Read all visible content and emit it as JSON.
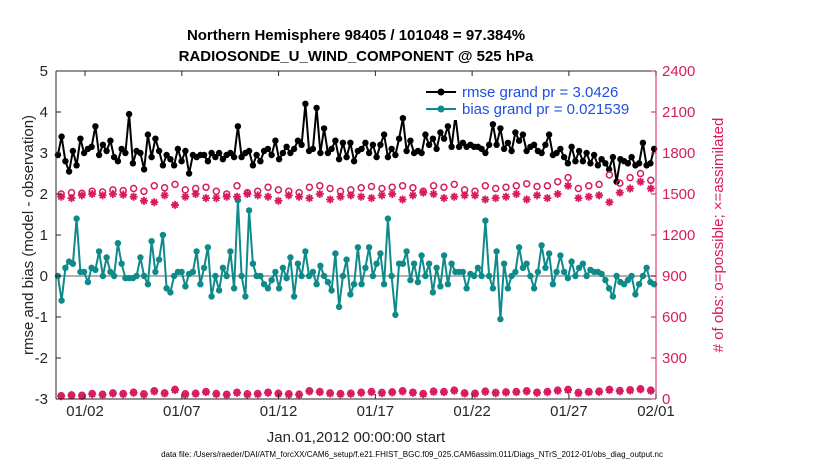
{
  "chart_data": {
    "type": "line",
    "title_line1": "Northern Hemisphere 98405 / 101048 = 97.384%",
    "title_line2": "RADIOSONDE_U_WIND_COMPONENT @ 525 hPa",
    "xlabel": "Jan.01,2012 00:00:00 start",
    "ylabel_left": "rmse and bias (model - observation)",
    "ylabel_right": "# of obs: o=possible; ×=assimilated",
    "ylim_left": [
      -3,
      5
    ],
    "ylim_right": [
      0,
      2400
    ],
    "xlim_day": [
      0.5,
      31.5
    ],
    "x_tick_labels": [
      "01/02",
      "01/07",
      "01/12",
      "01/17",
      "01/22",
      "01/27",
      "02/01"
    ],
    "x_tick_days": [
      2,
      7,
      12,
      17,
      22,
      27,
      32
    ],
    "y_ticks_left": [
      -3,
      -2,
      -1,
      0,
      1,
      2,
      3,
      4,
      5
    ],
    "y_ticks_right": [
      0,
      300,
      600,
      900,
      1200,
      1500,
      1800,
      2100,
      2400
    ],
    "footnote": "data file: /Users/raeder/DAI/ATM_forcXX/CAM6_setup/f.e21.FHIST_BGC.f09_025.CAM6assim.011/Diags_NTrS_2012-01/obs_diag_output.nc",
    "legend_placement": "top-right",
    "colors": {
      "rmse": "#000000",
      "bias": "#0f8a8a",
      "obs": "#d81b60",
      "zero_line": "#b0b0b0",
      "legend_text": "#1f4fe0"
    },
    "series": [
      {
        "name": "rmse grand pr = 3.0426",
        "axis": "left",
        "marker": "dot",
        "values": [
          2.95,
          3.4,
          2.8,
          2.55,
          3.05,
          2.7,
          3.35,
          3.0,
          3.1,
          3.15,
          3.65,
          2.95,
          3.2,
          3.05,
          3.3,
          2.9,
          2.8,
          3.1,
          3.0,
          3.95,
          2.75,
          3.05,
          3.0,
          2.6,
          3.45,
          2.9,
          3.35,
          3.05,
          2.7,
          2.95,
          2.85,
          2.7,
          3.1,
          2.8,
          3.05,
          2.5,
          2.95,
          2.9,
          2.95,
          2.95,
          2.8,
          3.0,
          2.9,
          3.0,
          2.85,
          2.95,
          3.0,
          2.9,
          3.65,
          2.9,
          3.0,
          3.05,
          2.7,
          2.95,
          2.8,
          3.05,
          3.1,
          2.95,
          3.3,
          2.85,
          3.0,
          3.15,
          3.0,
          3.1,
          3.3,
          3.2,
          4.2,
          3.05,
          3.1,
          4.1,
          3.0,
          3.6,
          3.0,
          3.1,
          3.3,
          2.85,
          3.25,
          2.9,
          3.25,
          2.8,
          3.05,
          3.1,
          3.25,
          3.0,
          3.2,
          2.9,
          3.2,
          3.45,
          2.9,
          3.1,
          2.95,
          3.35,
          3.85,
          3.05,
          3.3,
          3.0,
          3.05,
          3.0,
          3.45,
          3.2,
          3.35,
          3.1,
          3.5,
          3.35,
          3.65,
          3.15,
          3.9,
          3.15,
          3.25,
          3.15,
          3.2,
          3.15,
          3.15,
          3.1,
          3.0,
          3.2,
          3.7,
          3.2,
          3.6,
          3.1,
          3.25,
          3.05,
          3.5,
          3.3,
          3.45,
          3.05,
          3.15,
          3.2,
          3.05,
          3.0,
          3.2,
          3.45,
          2.95,
          3.0,
          3.1,
          2.9,
          2.75,
          3.15,
          2.8,
          3.05,
          2.8,
          3.0,
          2.75,
          2.95,
          2.7,
          2.85,
          2.75,
          2.6,
          2.9,
          2.3,
          2.85,
          2.8,
          2.75,
          2.9,
          2.7,
          2.75,
          3.25,
          2.7,
          2.75,
          3.1
        ]
      },
      {
        "name": "bias grand pr = 0.021539",
        "axis": "left",
        "marker": "dot",
        "values": [
          0.0,
          -0.6,
          0.2,
          0.35,
          0.3,
          1.4,
          0.1,
          0.1,
          -0.15,
          0.2,
          0.15,
          0.6,
          0.0,
          0.45,
          0.1,
          0.0,
          0.8,
          0.3,
          -0.05,
          -0.05,
          -0.05,
          0.0,
          0.45,
          0.0,
          -0.2,
          0.85,
          0.1,
          0.4,
          1.0,
          -0.3,
          -0.4,
          0.0,
          0.1,
          0.1,
          -0.25,
          0.05,
          0.1,
          0.6,
          -0.2,
          0.2,
          0.7,
          -0.5,
          0.0,
          -0.35,
          0.2,
          0.0,
          0.6,
          -0.3,
          1.85,
          0.0,
          -0.5,
          1.6,
          0.3,
          0.0,
          0.0,
          -0.2,
          -0.3,
          -0.1,
          0.1,
          -0.3,
          0.2,
          -0.05,
          0.45,
          -0.5,
          0.3,
          0.0,
          0.6,
          0.0,
          0.1,
          -0.2,
          0.25,
          0.0,
          -0.15,
          -0.35,
          0.55,
          -0.75,
          0.0,
          0.4,
          -0.45,
          -0.2,
          0.7,
          -0.2,
          0.2,
          0.7,
          0.0,
          0.3,
          0.55,
          -0.2,
          1.4,
          0.0,
          -0.95,
          0.3,
          0.3,
          0.6,
          -0.1,
          0.3,
          -0.15,
          0.5,
          0.0,
          0.3,
          -0.4,
          0.2,
          -0.25,
          0.5,
          -0.2,
          0.3,
          0.1,
          0.1,
          0.1,
          -0.3,
          0.05,
          0.0,
          0.2,
          0.0,
          1.35,
          0.0,
          -0.3,
          0.6,
          -1.05,
          0.3,
          -0.3,
          0.0,
          0.1,
          0.7,
          0.2,
          0.3,
          0.0,
          -0.3,
          0.1,
          0.75,
          0.2,
          0.55,
          -0.2,
          0.1,
          0.5,
          0.1,
          -0.05,
          0.35,
          0.0,
          0.2,
          0.3,
          0.0,
          0.15,
          0.1,
          0.1,
          0.05,
          -0.1,
          -0.3,
          -0.5,
          0.0,
          -0.15,
          -0.2,
          -0.1,
          0.0,
          -0.45,
          -0.2,
          0.0,
          0.2,
          -0.15,
          -0.2
        ]
      },
      {
        "name": "possible obs",
        "axis": "right",
        "marker": "circle",
        "values": [
          1500,
          1510,
          1505,
          1520,
          1515,
          1530,
          1525,
          1540,
          1520,
          1560,
          1545,
          1570,
          1530,
          1540,
          1550,
          1520,
          1500,
          1560,
          1510,
          1520,
          1550,
          1530,
          1520,
          1510,
          1550,
          1560,
          1540,
          1520,
          1530,
          1545,
          1555,
          1540,
          1550,
          1560,
          1545,
          1520,
          1560,
          1550,
          1570,
          1530,
          1520,
          1560,
          1540,
          1550,
          1560,
          1575,
          1555,
          1560,
          1590,
          1620,
          1540,
          1560,
          1570,
          1640,
          1580,
          1620,
          1650,
          1600
        ]
      },
      {
        "name": "assimilated obs",
        "axis": "right",
        "marker": "asterisk",
        "values": [
          1480,
          1470,
          1490,
          1500,
          1490,
          1500,
          1495,
          1480,
          1450,
          1440,
          1490,
          1420,
          1480,
          1500,
          1470,
          1470,
          1480,
          1480,
          1500,
          1490,
          1480,
          1450,
          1490,
          1480,
          1470,
          1500,
          1460,
          1480,
          1490,
          1480,
          1470,
          1490,
          1500,
          1460,
          1490,
          1510,
          1500,
          1470,
          1480,
          1490,
          1490,
          1460,
          1470,
          1480,
          1500,
          1460,
          1490,
          1470,
          1500,
          1560,
          1470,
          1480,
          1490,
          1440,
          1510,
          1540,
          1590,
          1540
        ]
      },
      {
        "name": "possible obs (low)",
        "axis": "right",
        "marker": "circle",
        "values": [
          25,
          30,
          28,
          40,
          35,
          45,
          40,
          50,
          38,
          60,
          45,
          70,
          38,
          42,
          55,
          40,
          35,
          50,
          38,
          40,
          50,
          42,
          38,
          36,
          60,
          55,
          45,
          40,
          42,
          50,
          55,
          48,
          52,
          60,
          50,
          40,
          58,
          55,
          65,
          45,
          42,
          58,
          48,
          52,
          55,
          60,
          50,
          55,
          65,
          70,
          48,
          55,
          58,
          70,
          62,
          68,
          75,
          65
        ]
      },
      {
        "name": "assimilated obs (low)",
        "axis": "right",
        "marker": "asterisk",
        "values": [
          20,
          25,
          22,
          35,
          30,
          40,
          35,
          45,
          32,
          55,
          40,
          65,
          32,
          38,
          50,
          35,
          30,
          45,
          32,
          35,
          45,
          38,
          32,
          30,
          55,
          50,
          40,
          35,
          38,
          45,
          50,
          42,
          48,
          55,
          45,
          35,
          52,
          50,
          60,
          40,
          38,
          52,
          42,
          48,
          50,
          55,
          45,
          50,
          60,
          65,
          42,
          50,
          52,
          65,
          56,
          62,
          70,
          60
        ]
      }
    ]
  }
}
